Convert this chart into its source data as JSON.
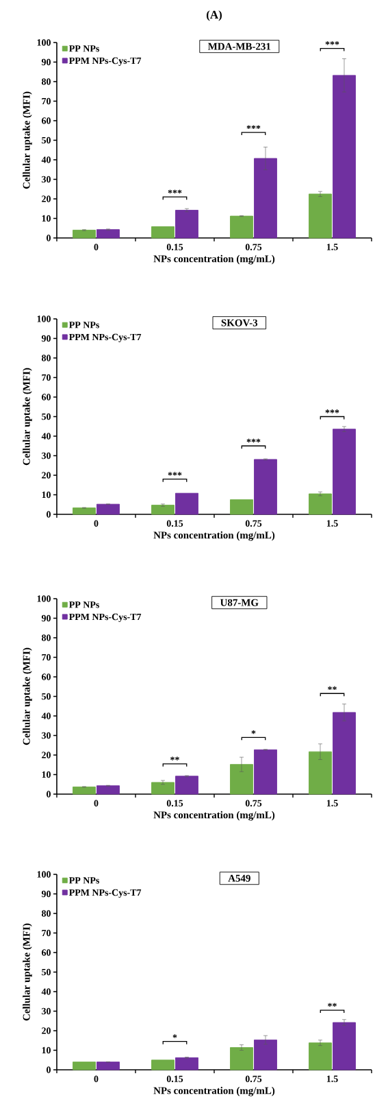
{
  "chart_data": [
    {
      "type": "bar",
      "title": "(A)",
      "subtitle": "MDA-MB-231",
      "xlabel": "NPs concentration (mg/mL)",
      "ylabel": "Cellular uptake (MFI)",
      "categories": [
        "0",
        "0.15",
        "0.75",
        "1.5"
      ],
      "ylim": [
        0,
        100
      ],
      "yticks": [
        0,
        10,
        20,
        30,
        40,
        50,
        60,
        70,
        80,
        90,
        100
      ],
      "legend": "top left",
      "series": [
        {
          "name": "PP NPs",
          "color": "#70ad47",
          "values": [
            4.0,
            5.8,
            11.2,
            22.5
          ],
          "errors": [
            0.3,
            null,
            0.2,
            1.3
          ]
        },
        {
          "name": "PPM NPs-Cys-T7",
          "color": "#7030a0",
          "values": [
            4.3,
            14.2,
            40.7,
            83.2
          ],
          "errors": [
            0.3,
            0.8,
            5.8,
            8.5
          ]
        }
      ],
      "annotations": [
        "***",
        "***",
        "***"
      ]
    },
    {
      "type": "bar",
      "subtitle": "SKOV-3",
      "xlabel": "NPs concentration (mg/mL)",
      "ylabel": "Cellular uptake (MFI)",
      "categories": [
        "0",
        "0.15",
        "0.75",
        "1.5"
      ],
      "ylim": [
        0,
        100
      ],
      "yticks": [
        0,
        10,
        20,
        30,
        40,
        50,
        60,
        70,
        80,
        90,
        100
      ],
      "legend": "top left",
      "series": [
        {
          "name": "PP NPs",
          "color": "#70ad47",
          "values": [
            3.3,
            4.7,
            7.5,
            10.5
          ],
          "errors": [
            0.2,
            0.6,
            null,
            1.0
          ]
        },
        {
          "name": "PPM NPs-Cys-T7",
          "color": "#7030a0",
          "values": [
            5.2,
            10.8,
            28.1,
            43.6
          ],
          "errors": [
            0.1,
            null,
            0.3,
            1.3
          ]
        }
      ],
      "annotations": [
        "***",
        "***",
        "***"
      ]
    },
    {
      "type": "bar",
      "subtitle": "U87-MG",
      "xlabel": "NPs concentration (mg/mL)",
      "ylabel": "Cellular uptake (MFI)",
      "categories": [
        "0",
        "0.15",
        "0.75",
        "1.5"
      ],
      "ylim": [
        0,
        100
      ],
      "yticks": [
        0,
        10,
        20,
        30,
        40,
        50,
        60,
        70,
        80,
        90,
        100
      ],
      "legend": "top left",
      "series": [
        {
          "name": "PP NPs",
          "color": "#70ad47",
          "values": [
            3.7,
            6.0,
            15.2,
            21.7
          ],
          "errors": [
            0.2,
            1.0,
            3.7,
            4.0
          ]
        },
        {
          "name": "PPM NPs-Cys-T7",
          "color": "#7030a0",
          "values": [
            4.3,
            9.2,
            22.7,
            41.8
          ],
          "errors": [
            0.2,
            0.3,
            0.2,
            4.3
          ]
        }
      ],
      "annotations": [
        "**",
        "*",
        "**"
      ]
    },
    {
      "type": "bar",
      "subtitle": "A549",
      "xlabel": "NPs concentration (mg/mL)",
      "ylabel": "Cellular uptake (MFI)",
      "categories": [
        "0",
        "0.15",
        "0.75",
        "1.5"
      ],
      "ylim": [
        0,
        100
      ],
      "yticks": [
        0,
        10,
        20,
        30,
        40,
        50,
        60,
        70,
        80,
        90,
        100
      ],
      "legend": "top left",
      "series": [
        {
          "name": "PP NPs",
          "color": "#70ad47",
          "values": [
            4.0,
            5.0,
            11.4,
            13.8
          ],
          "errors": [
            null,
            null,
            1.4,
            1.4
          ]
        },
        {
          "name": "PPM NPs-Cys-T7",
          "color": "#7030a0",
          "values": [
            4.0,
            6.2,
            15.3,
            24.2
          ],
          "errors": [
            0.1,
            0.3,
            2.2,
            1.5
          ]
        }
      ],
      "annotations": [
        "*",
        "**"
      ]
    }
  ]
}
